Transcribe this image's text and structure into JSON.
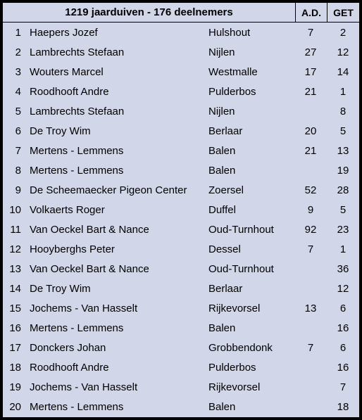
{
  "header": {
    "title": "1219 jaarduiven - 176 deelnemers",
    "col_ad": "A.D.",
    "col_get": "GET"
  },
  "rows": [
    {
      "rank": "1",
      "name": "Haepers Jozef",
      "location": "Hulshout",
      "ad": "7",
      "get": "2"
    },
    {
      "rank": "2",
      "name": "Lambrechts Stefaan",
      "location": "Nijlen",
      "ad": "27",
      "get": "12"
    },
    {
      "rank": "3",
      "name": "Wouters Marcel",
      "location": "Westmalle",
      "ad": "17",
      "get": "14"
    },
    {
      "rank": "4",
      "name": "Roodhooft Andre",
      "location": "Pulderbos",
      "ad": "21",
      "get": "1"
    },
    {
      "rank": "5",
      "name": "Lambrechts Stefaan",
      "location": "Nijlen",
      "ad": "",
      "get": "8"
    },
    {
      "rank": "6",
      "name": "De Troy Wim",
      "location": "Berlaar",
      "ad": "20",
      "get": "5"
    },
    {
      "rank": "7",
      "name": "Mertens - Lemmens",
      "location": "Balen",
      "ad": "21",
      "get": "13"
    },
    {
      "rank": "8",
      "name": "Mertens - Lemmens",
      "location": "Balen",
      "ad": "",
      "get": "19"
    },
    {
      "rank": "9",
      "name": "De Scheemaecker Pigeon Center",
      "location": "Zoersel",
      "ad": "52",
      "get": "28"
    },
    {
      "rank": "10",
      "name": "Volkaerts Roger",
      "location": "Duffel",
      "ad": "9",
      "get": "5"
    },
    {
      "rank": "11",
      "name": "Van Oeckel Bart & Nance",
      "location": "Oud-Turnhout",
      "ad": "92",
      "get": "23"
    },
    {
      "rank": "12",
      "name": "Hooyberghs Peter",
      "location": "Dessel",
      "ad": "7",
      "get": "1"
    },
    {
      "rank": "13",
      "name": "Van Oeckel Bart & Nance",
      "location": "Oud-Turnhout",
      "ad": "",
      "get": "36"
    },
    {
      "rank": "14",
      "name": "De Troy Wim",
      "location": "Berlaar",
      "ad": "",
      "get": "12"
    },
    {
      "rank": "15",
      "name": "Jochems - Van Hasselt",
      "location": "Rijkevorsel",
      "ad": "13",
      "get": "6"
    },
    {
      "rank": "16",
      "name": "Mertens - Lemmens",
      "location": "Balen",
      "ad": "",
      "get": "16"
    },
    {
      "rank": "17",
      "name": "Donckers Johan",
      "location": "Grobbendonk",
      "ad": "7",
      "get": "6"
    },
    {
      "rank": "18",
      "name": "Roodhooft Andre",
      "location": "Pulderbos",
      "ad": "",
      "get": "16"
    },
    {
      "rank": "19",
      "name": "Jochems - Van Hasselt",
      "location": "Rijkevorsel",
      "ad": "",
      "get": "7"
    },
    {
      "rank": "20",
      "name": "Mertens - Lemmens",
      "location": "Balen",
      "ad": "",
      "get": "18"
    }
  ],
  "style": {
    "background_color": "#d1d6e8",
    "border_color": "#000000",
    "font_size": 15,
    "header_font_weight": "bold"
  }
}
